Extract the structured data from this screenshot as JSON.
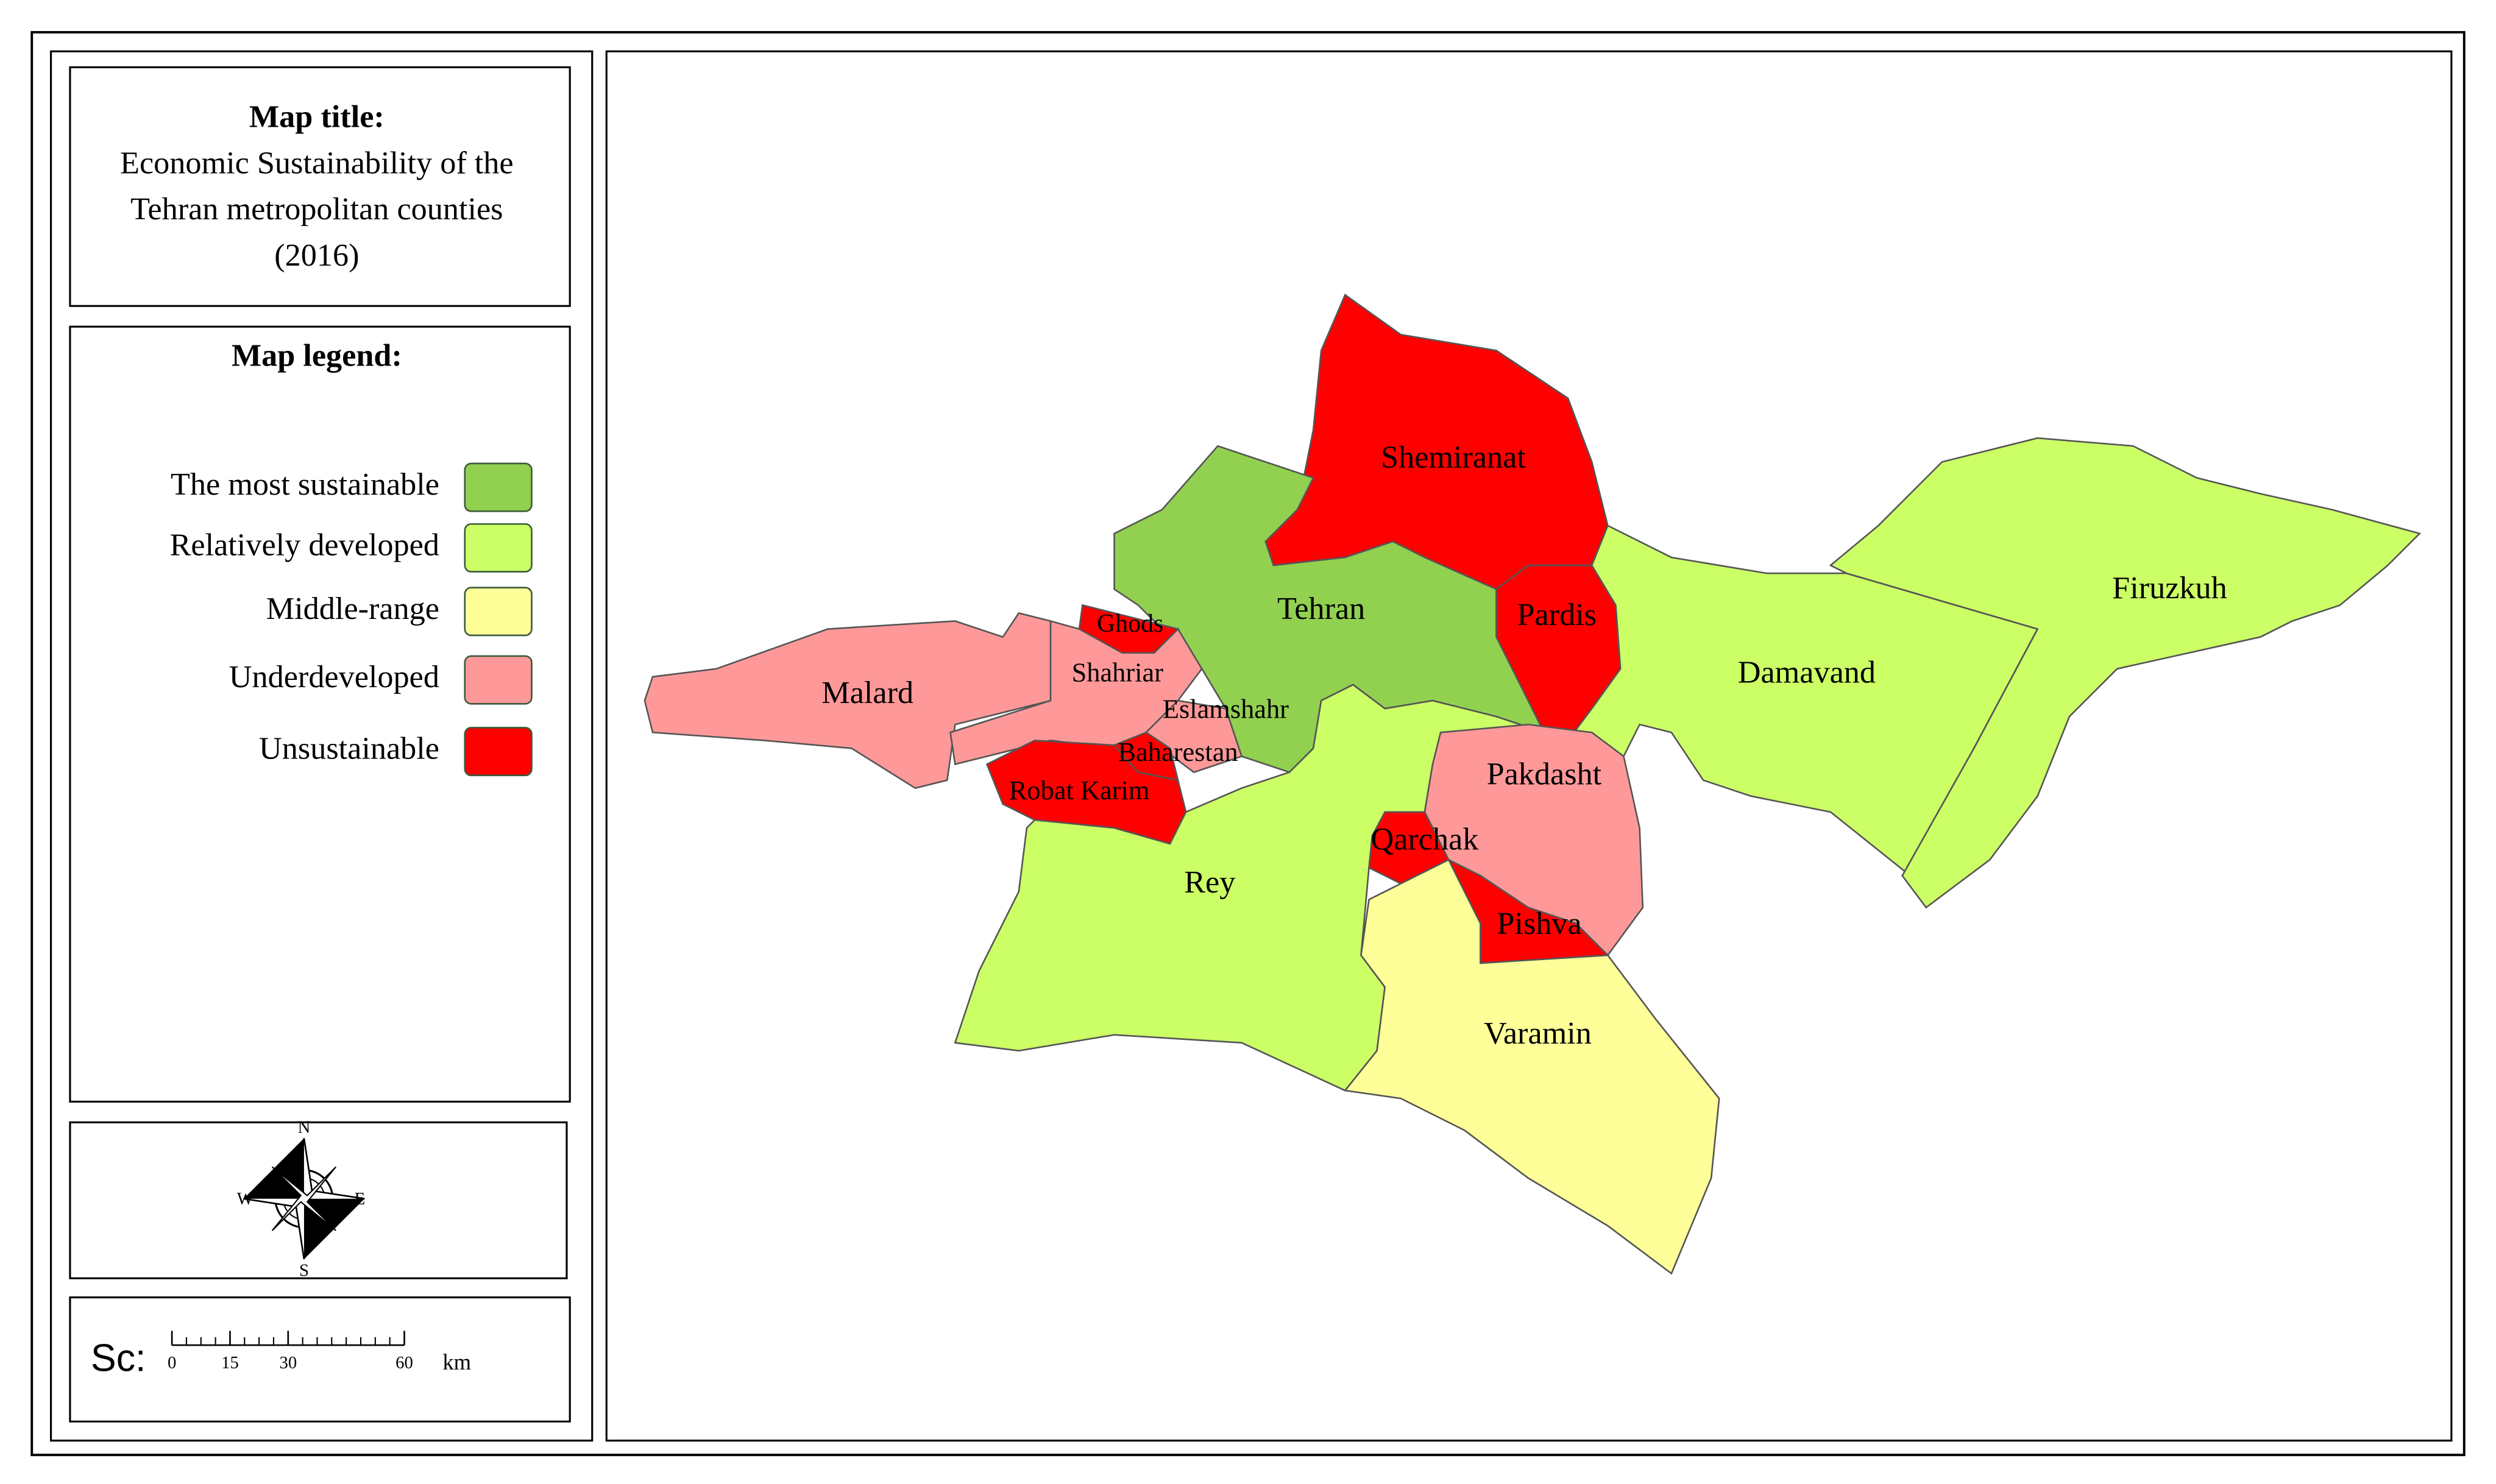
{
  "title_box": {
    "heading": "Map title:",
    "lines": [
      "Economic Sustainability  of the",
      "Tehran metropolitan  counties",
      "(2016)"
    ]
  },
  "legend": {
    "heading": "Map legend:",
    "items": [
      {
        "label": "The most sustainable",
        "color": "#92d050"
      },
      {
        "label": "Relatively  developed",
        "color": "#ccff66"
      },
      {
        "label": "Middle-range",
        "color": "#ffff99"
      },
      {
        "label": "Underdeveloped",
        "color": "#ff9999"
      },
      {
        "label": "Unsustainable",
        "color": "#ff0000"
      }
    ]
  },
  "compass": {
    "north": "N",
    "east": "E",
    "south": "S",
    "west": "W"
  },
  "scale_bar": {
    "prefix": "Sc:",
    "ticks": [
      0,
      15,
      30,
      60
    ],
    "unit": "km"
  },
  "counties": [
    {
      "name": "Shemiranat",
      "category": "Unsustainable"
    },
    {
      "name": "Tehran",
      "category": "The most sustainable"
    },
    {
      "name": "Pardis",
      "category": "Unsustainable"
    },
    {
      "name": "Damavand",
      "category": "Relatively  developed"
    },
    {
      "name": "Firuzkuh",
      "category": "Relatively  developed"
    },
    {
      "name": "Malard",
      "category": "Underdeveloped"
    },
    {
      "name": "Shahriar",
      "category": "Underdeveloped"
    },
    {
      "name": "Ghods",
      "category": "Unsustainable"
    },
    {
      "name": "Eslamshahr",
      "category": "Underdeveloped"
    },
    {
      "name": "Robat Karim",
      "category": "Unsustainable"
    },
    {
      "name": "Baharestan",
      "category": "Unsustainable"
    },
    {
      "name": "Rey",
      "category": "Relatively  developed"
    },
    {
      "name": "Pakdasht",
      "category": "Underdeveloped"
    },
    {
      "name": "Qarchak",
      "category": "Unsustainable"
    },
    {
      "name": "Pishva",
      "category": "Unsustainable"
    },
    {
      "name": "Varamin",
      "category": "Middle-range"
    }
  ]
}
